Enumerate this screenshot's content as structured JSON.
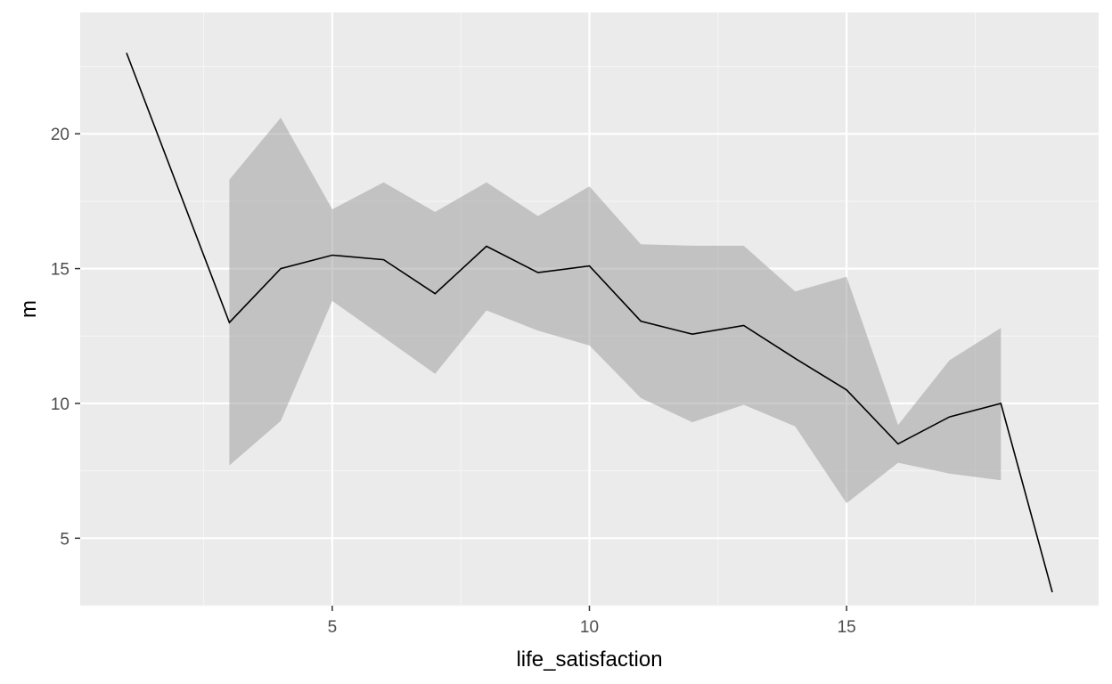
{
  "chart_data": {
    "type": "line",
    "title": "",
    "xlabel": "life_satisfaction",
    "ylabel": "m",
    "xlim": [
      0.1,
      19.9
    ],
    "ylim": [
      2.5,
      24.5
    ],
    "grid": true,
    "x_ticks": [
      5,
      10,
      15
    ],
    "x_tick_labels": [
      "5",
      "10",
      "15"
    ],
    "x_minor_ticks": [
      2.5,
      7.5,
      12.5,
      17.5
    ],
    "y_ticks": [
      5,
      10,
      15,
      20
    ],
    "y_tick_labels": [
      "5",
      "10",
      "15",
      "20"
    ],
    "y_minor_ticks": [
      2.5,
      7.5,
      12.5,
      17.5,
      22.5
    ],
    "colors": {
      "panel_background": "#ebebeb",
      "grid_major": "#ffffff",
      "grid_minor": "#f5f5f5",
      "ribbon_fill": "#999999",
      "line": "#000000",
      "tick_mark": "#333333"
    },
    "series": [
      {
        "x": [
          1,
          3,
          4,
          5,
          6,
          7,
          8,
          9,
          10,
          11,
          12,
          13,
          14,
          15,
          16,
          17,
          18,
          19
        ],
        "values": [
          23.0,
          13.0,
          15.0,
          15.5,
          15.33,
          14.07,
          15.83,
          14.85,
          15.1,
          13.05,
          12.57,
          12.89,
          11.67,
          10.5,
          8.5,
          9.5,
          10.0,
          3.0
        ]
      }
    ],
    "ribbon": {
      "x": [
        3,
        4,
        5,
        6,
        7,
        8,
        9,
        10,
        11,
        12,
        13,
        14,
        15,
        16,
        17,
        18
      ],
      "lower": [
        7.7,
        9.35,
        13.8,
        12.45,
        11.1,
        13.45,
        12.7,
        12.15,
        10.2,
        9.3,
        9.95,
        9.15,
        6.3,
        7.8,
        7.4,
        7.15
      ],
      "upper": [
        18.3,
        20.6,
        17.2,
        18.2,
        17.1,
        18.2,
        16.95,
        18.05,
        15.9,
        15.85,
        15.85,
        14.15,
        14.7,
        9.2,
        11.6,
        12.8
      ]
    }
  }
}
